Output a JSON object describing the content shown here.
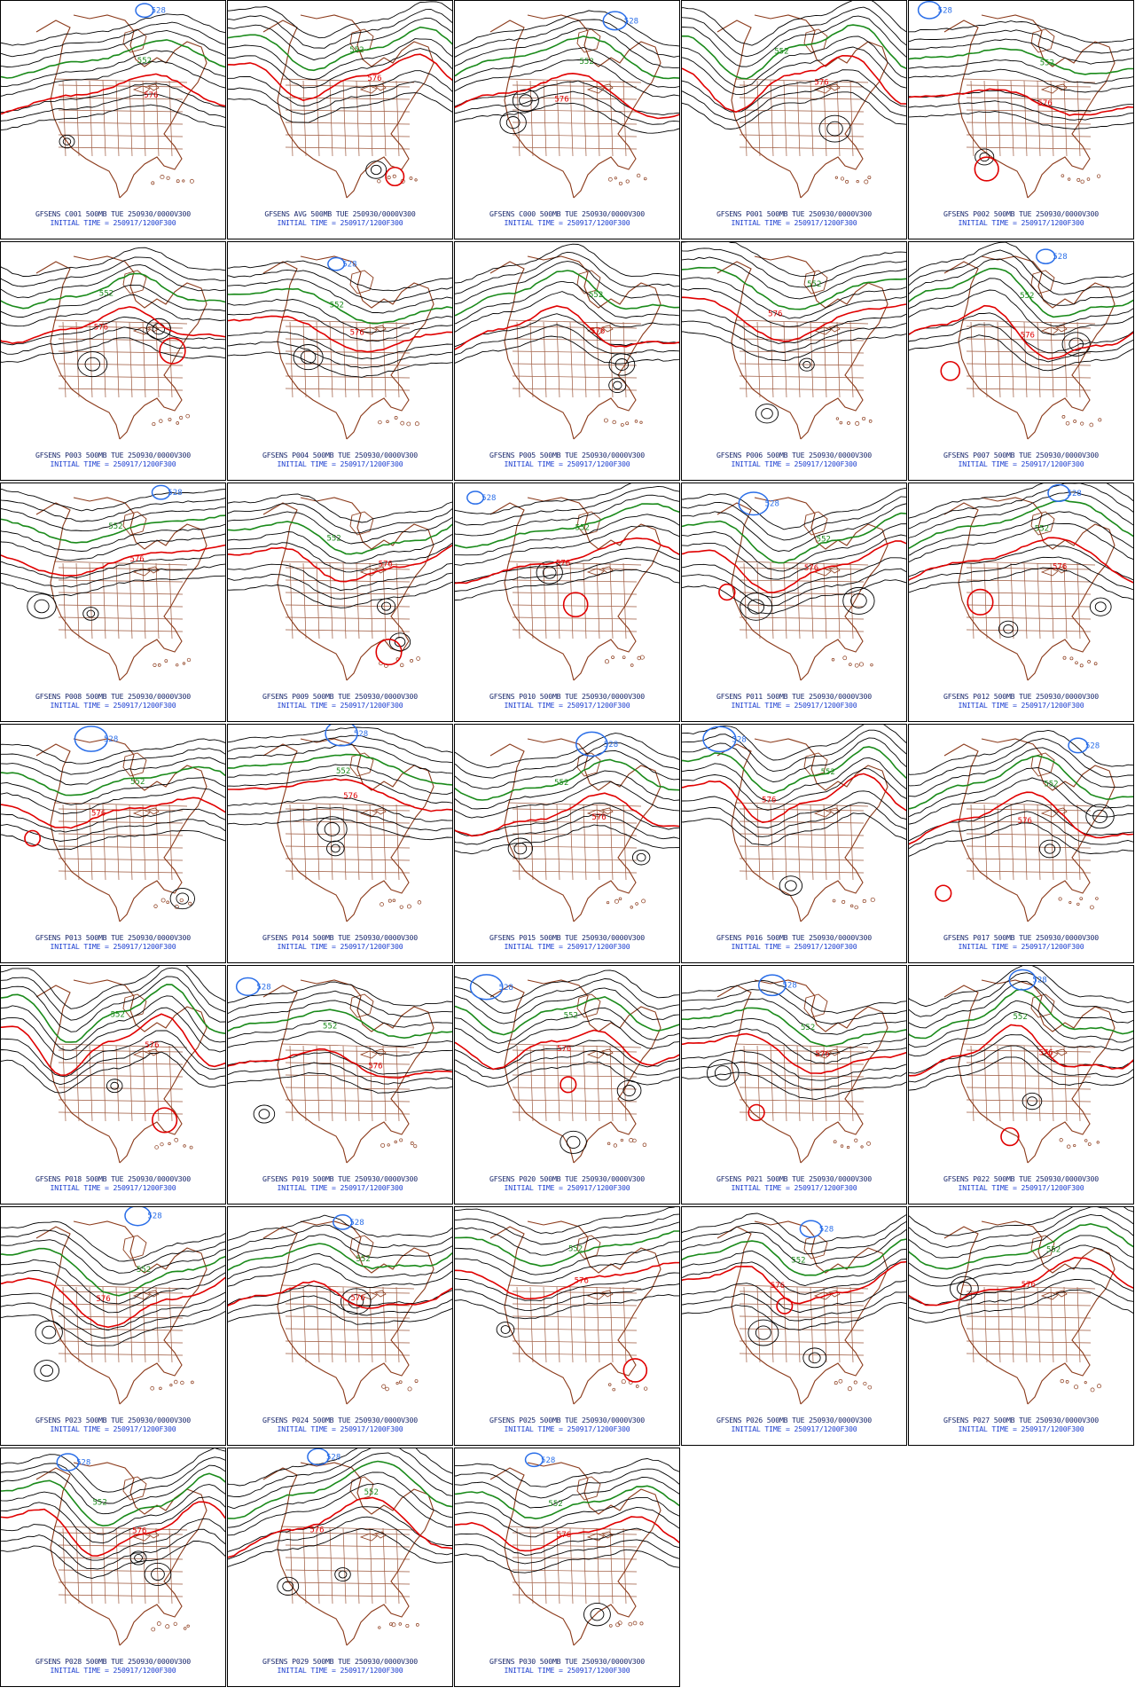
{
  "colors": {
    "coast": "#8b3a1a",
    "contour": "#000000",
    "c552": "#1a8a1a",
    "c576": "#e00000",
    "low": "#2a6ee8",
    "caption_top": "#1c2a6e",
    "caption_bottom": "#1d3fd0"
  },
  "contour_labels": {
    "green": "552",
    "red": "576",
    "blue": "528"
  },
  "caption": {
    "valid": "500MB TUE 250930/0000V300",
    "init": "INITIAL TIME = 250917/1200F300"
  },
  "panels": [
    {
      "id": "GFSENS C001"
    },
    {
      "id": "GFSENS AVG"
    },
    {
      "id": "GFSENS C000"
    },
    {
      "id": "GFSENS P001"
    },
    {
      "id": "GFSENS P002"
    },
    {
      "id": "GFSENS P003"
    },
    {
      "id": "GFSENS P004"
    },
    {
      "id": "GFSENS P005"
    },
    {
      "id": "GFSENS P006"
    },
    {
      "id": "GFSENS P007"
    },
    {
      "id": "GFSENS P008"
    },
    {
      "id": "GFSENS P009"
    },
    {
      "id": "GFSENS P010"
    },
    {
      "id": "GFSENS P011"
    },
    {
      "id": "GFSENS P012"
    },
    {
      "id": "GFSENS P013"
    },
    {
      "id": "GFSENS P014"
    },
    {
      "id": "GFSENS P015"
    },
    {
      "id": "GFSENS P016"
    },
    {
      "id": "GFSENS P017"
    },
    {
      "id": "GFSENS P018"
    },
    {
      "id": "GFSENS P019"
    },
    {
      "id": "GFSENS P020"
    },
    {
      "id": "GFSENS P021"
    },
    {
      "id": "GFSENS P022"
    },
    {
      "id": "GFSENS P023"
    },
    {
      "id": "GFSENS P024"
    },
    {
      "id": "GFSENS P025"
    },
    {
      "id": "GFSENS P026"
    },
    {
      "id": "GFSENS P027"
    },
    {
      "id": "GFSENS P028"
    },
    {
      "id": "GFSENS P029"
    },
    {
      "id": "GFSENS P030"
    }
  ]
}
